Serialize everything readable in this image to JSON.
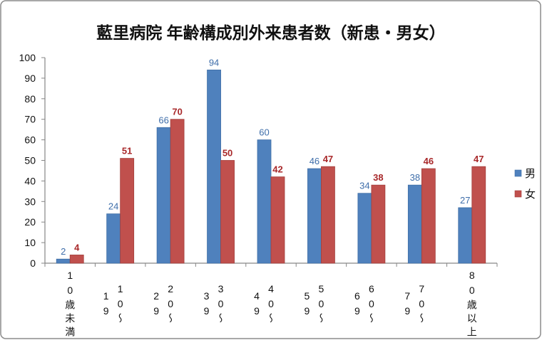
{
  "chart_data": {
    "type": "bar",
    "title": "藍里病院 年齢構成別外来患者数（新患・男女）",
    "categories": [
      "10歳未満",
      "10～19",
      "20～29",
      "30～39",
      "40～49",
      "50～59",
      "60～69",
      "70～79",
      "80歳以上"
    ],
    "series": [
      {
        "name": "男",
        "values": [
          2,
          24,
          66,
          94,
          60,
          46,
          34,
          38,
          27
        ],
        "color": "#4f81bd",
        "stroke": "#3e6ea6",
        "label_color": "#3f6eaa"
      },
      {
        "name": "女",
        "values": [
          4,
          51,
          70,
          50,
          42,
          47,
          38,
          46,
          47
        ],
        "color": "#c0504d",
        "stroke": "#a33f3c",
        "label_color": "#a8282a"
      }
    ],
    "ylim": [
      0,
      100
    ],
    "yticks": [
      0,
      10,
      20,
      30,
      40,
      50,
      60,
      70,
      80,
      90,
      100
    ],
    "grid": false,
    "legend": "right"
  }
}
